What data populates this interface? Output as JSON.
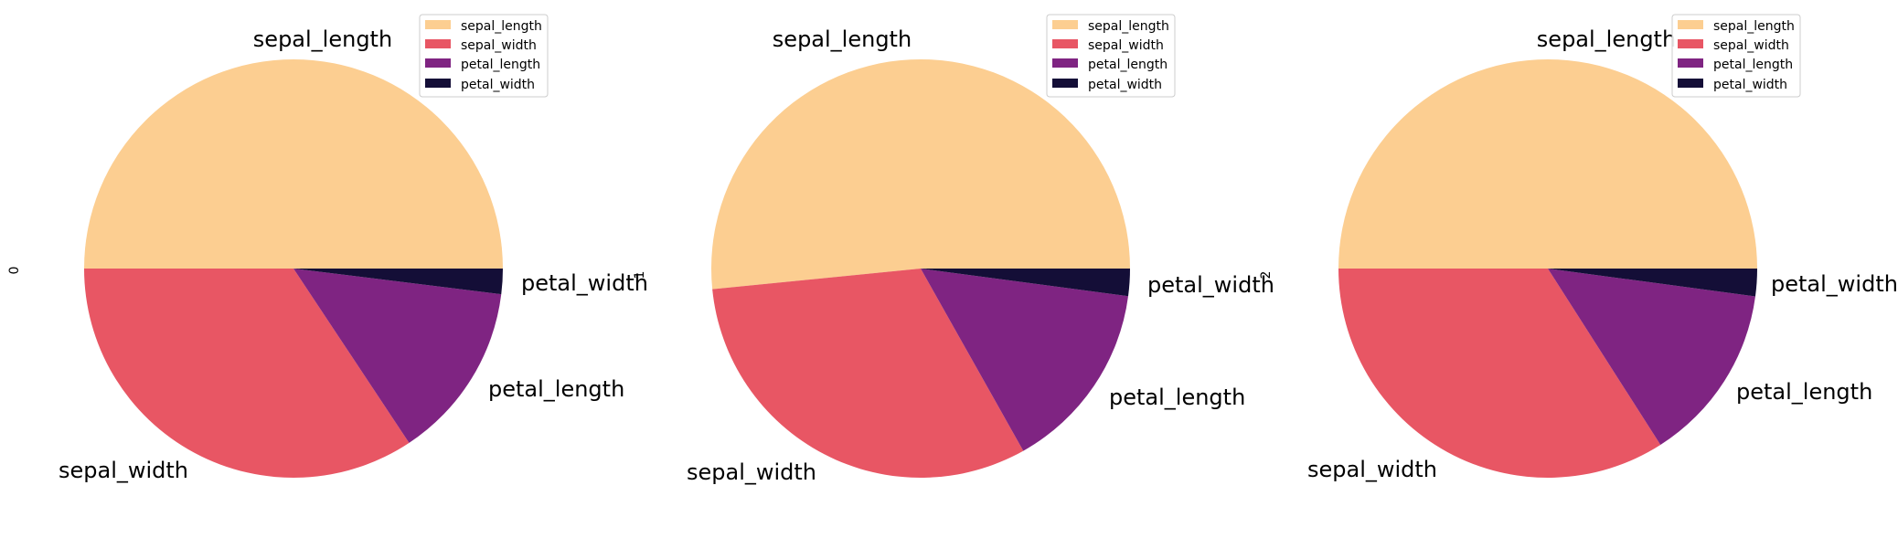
{
  "chart_data": [
    {
      "type": "pie",
      "ylabel": "0",
      "categories": [
        "sepal_length",
        "sepal_width",
        "petal_length",
        "petal_width"
      ],
      "values": [
        5.1,
        3.5,
        1.4,
        0.2
      ],
      "legend": [
        "sepal_length",
        "sepal_width",
        "petal_length",
        "petal_width"
      ],
      "legend_placement": "upper-right"
    },
    {
      "type": "pie",
      "ylabel": "1",
      "categories": [
        "sepal_length",
        "sepal_width",
        "petal_length",
        "petal_width"
      ],
      "values": [
        4.9,
        3.0,
        1.4,
        0.2
      ],
      "legend": [
        "sepal_length",
        "sepal_width",
        "petal_length",
        "petal_width"
      ],
      "legend_placement": "upper-right"
    },
    {
      "type": "pie",
      "ylabel": "2",
      "categories": [
        "sepal_length",
        "sepal_width",
        "petal_length",
        "petal_width"
      ],
      "values": [
        4.7,
        3.2,
        1.3,
        0.2
      ],
      "legend": [
        "sepal_length",
        "sepal_width",
        "petal_length",
        "petal_width"
      ],
      "legend_placement": "upper-right"
    }
  ],
  "colors": [
    "#fcce91",
    "#e85664",
    "#7f2482",
    "#140e37"
  ]
}
